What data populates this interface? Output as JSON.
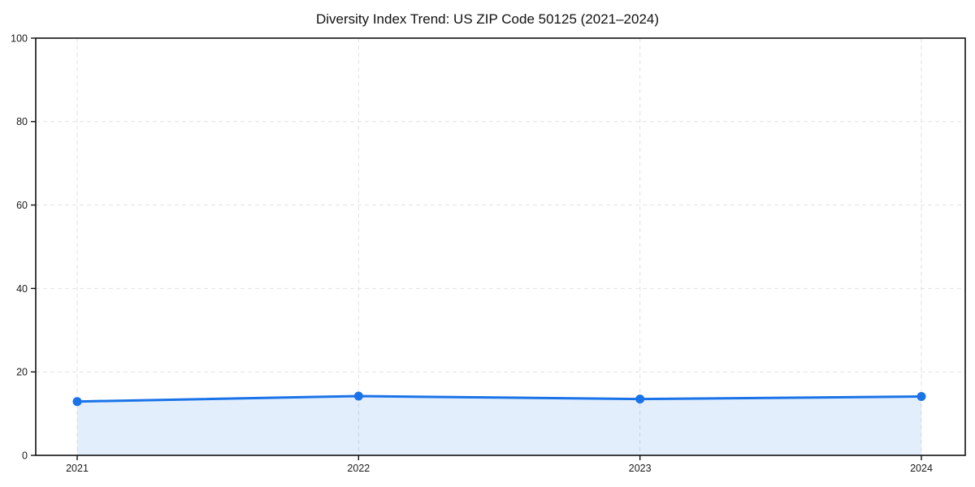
{
  "chart_data": {
    "type": "line",
    "title": "Diversity Index Trend: US ZIP Code 50125 (2021–2024)",
    "x": [
      "2021",
      "2022",
      "2023",
      "2024"
    ],
    "series": [
      {
        "name": "Diversity Index",
        "values": [
          12.9,
          14.2,
          13.5,
          14.1
        ]
      }
    ],
    "xlabel": "",
    "ylabel": "",
    "ylim": [
      0,
      100
    ],
    "yticks": [
      0,
      20,
      40,
      60,
      80,
      100
    ],
    "grid": true,
    "grid_style": "dashed",
    "legend_position": "none",
    "area_fill": true,
    "colors": {
      "line": "#1a73e8",
      "marker": "#1a73e8",
      "area_fill": "#1a73e8",
      "area_fill_opacity": 0.12,
      "grid": "#e2e2e2",
      "spine": "#111111",
      "tick_label": "#1a1a1a",
      "title": "#111111",
      "background": "#ffffff"
    }
  }
}
